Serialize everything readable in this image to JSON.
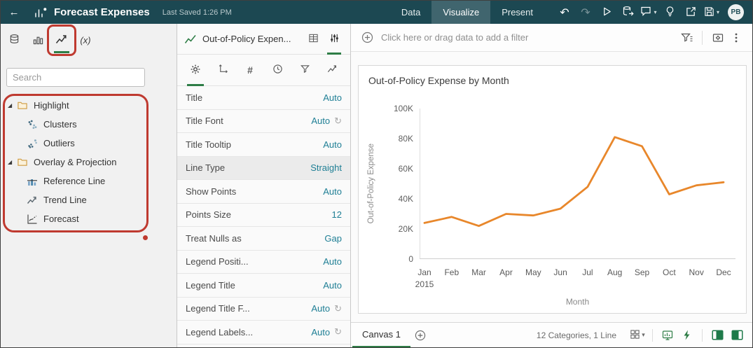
{
  "colors": {
    "accent_green": "#2e7d46",
    "header_bg": "#1c4852",
    "annotation_red": "#bf3a30",
    "value_teal": "#1f7f95",
    "line_orange": "#e8872b"
  },
  "header": {
    "title": "Forecast Expenses",
    "last_saved": "Last Saved 1:26 PM",
    "nav_tabs": [
      {
        "label": "Data",
        "active": false
      },
      {
        "label": "Visualize",
        "active": true
      },
      {
        "label": "Present",
        "active": false
      }
    ],
    "avatar_initials": "PB"
  },
  "left_panel": {
    "calc_tab_label": "(x)",
    "search": {
      "placeholder": "Search",
      "value": ""
    },
    "tree": [
      {
        "type": "folder",
        "label": "Highlight",
        "icon": "folder-icon",
        "expanded": true
      },
      {
        "type": "item",
        "label": "Clusters",
        "icon": "clusters-icon"
      },
      {
        "type": "item",
        "label": "Outliers",
        "icon": "outliers-icon"
      },
      {
        "type": "folder",
        "label": "Overlay & Projection",
        "icon": "folder-icon",
        "expanded": true
      },
      {
        "type": "item",
        "label": "Reference Line",
        "icon": "reference-line-icon"
      },
      {
        "type": "item",
        "label": "Trend Line",
        "icon": "trend-line-icon"
      },
      {
        "type": "item",
        "label": "Forecast",
        "icon": "forecast-icon"
      }
    ]
  },
  "properties_panel": {
    "viz_title": "Out-of-Policy Expen...",
    "values_tab_glyph": "#",
    "rows": [
      {
        "label": "Title",
        "value": "Auto"
      },
      {
        "label": "Title Font",
        "value": "Auto",
        "reset_icon": true
      },
      {
        "label": "Title Tooltip",
        "value": "Auto"
      },
      {
        "label": "Line Type",
        "value": "Straight",
        "highlighted": true
      },
      {
        "label": "Show Points",
        "value": "Auto"
      },
      {
        "label": "Points Size",
        "value": "12"
      },
      {
        "label": "Treat Nulls as",
        "value": "Gap"
      },
      {
        "label": "Legend Positi...",
        "value": "Auto"
      },
      {
        "label": "Legend Title",
        "value": "Auto"
      },
      {
        "label": "Legend Title F...",
        "value": "Auto",
        "reset_icon": true
      },
      {
        "label": "Legend Labels...",
        "value": "Auto",
        "reset_icon": true
      }
    ]
  },
  "filter_bar": {
    "prompt": "Click here or drag data to add a filter"
  },
  "chart_data": {
    "type": "line",
    "title": "Out-of-Policy Expense by Month",
    "xlabel": "Month",
    "ylabel": "Out-of-Policy Expense",
    "categories": [
      "Jan",
      "Feb",
      "Mar",
      "Apr",
      "May",
      "Jun",
      "Jul",
      "Aug",
      "Sep",
      "Oct",
      "Nov",
      "Dec"
    ],
    "x_sub_label": "2015",
    "values": [
      24000,
      28000,
      22000,
      30000,
      29000,
      33500,
      48000,
      81000,
      75000,
      43000,
      49000,
      51000
    ],
    "ylim": [
      0,
      100000
    ],
    "ytick_labels": [
      "0",
      "20K",
      "40K",
      "60K",
      "80K",
      "100K"
    ],
    "line_color": "#e8872b",
    "grid": false,
    "legend": "none"
  },
  "canvas_bar": {
    "tabs": [
      {
        "label": "Canvas 1",
        "active": true
      }
    ],
    "status": "12 Categories, 1 Line"
  }
}
